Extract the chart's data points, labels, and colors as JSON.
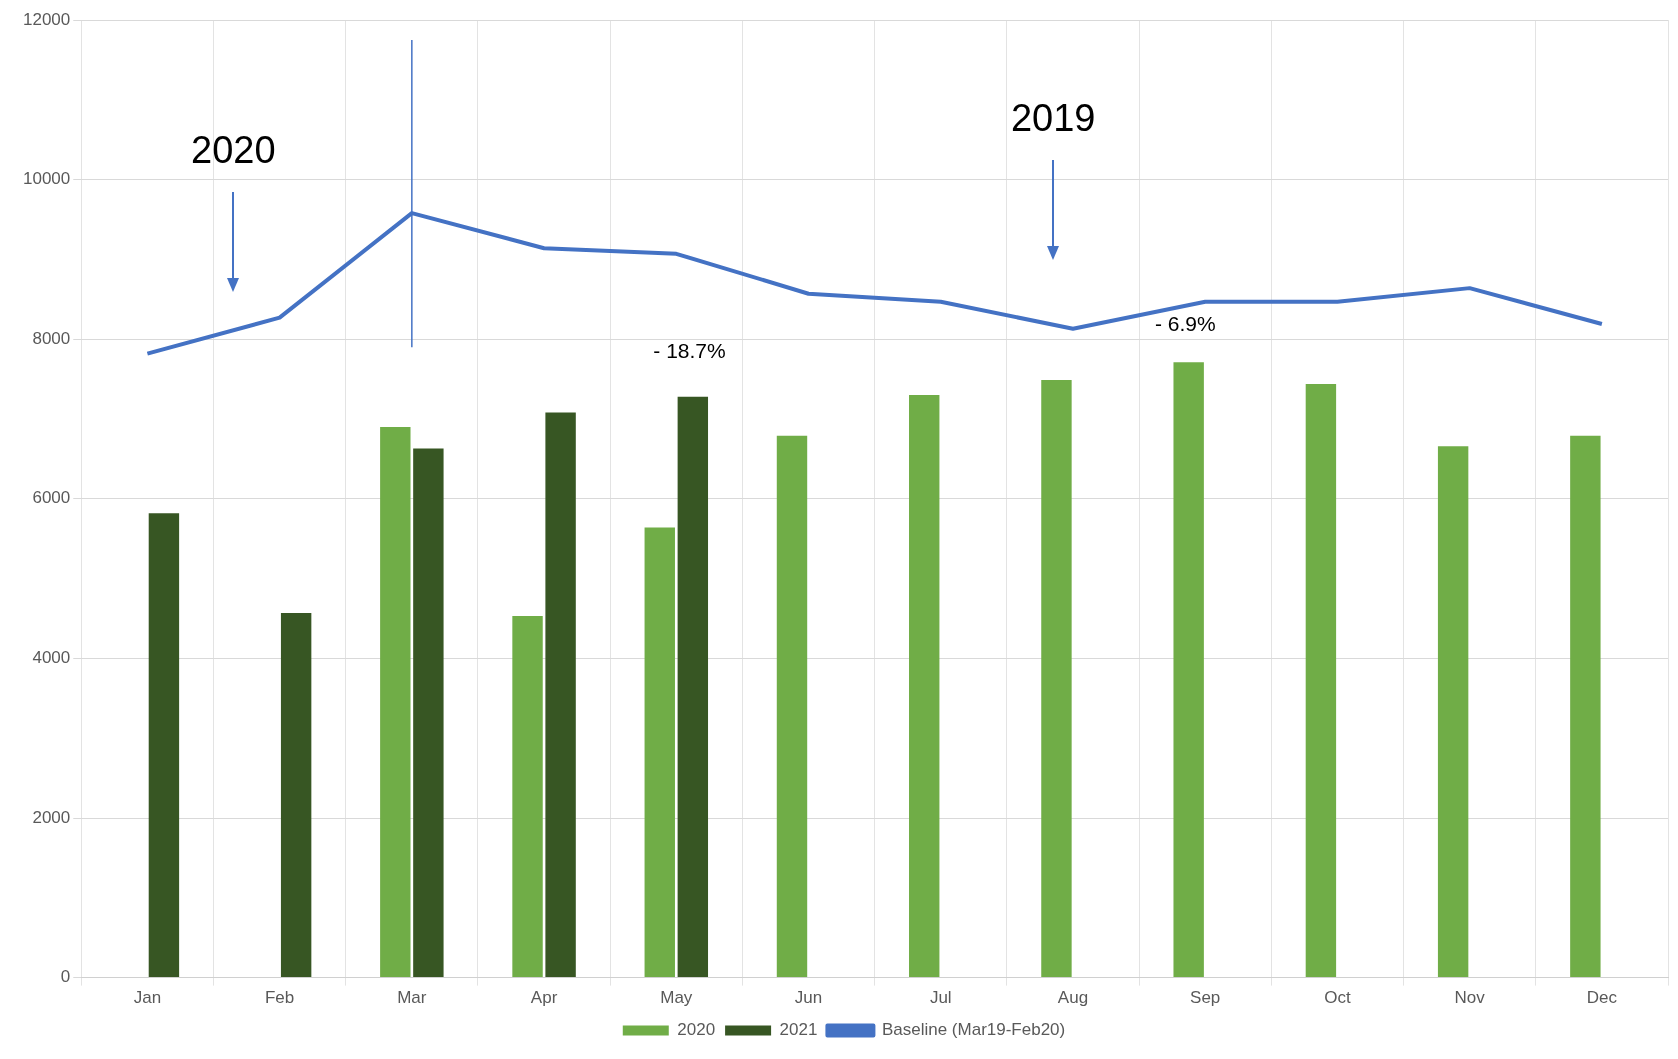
{
  "chart_data": {
    "type": "bar",
    "categories": [
      "Jan",
      "Feb",
      "Mar",
      "Apr",
      "May",
      "Jun",
      "Jul",
      "Aug",
      "Sep",
      "Oct",
      "Nov",
      "Dec"
    ],
    "series": [
      {
        "name": "2020",
        "color": "#70ad47",
        "values": [
          null,
          null,
          6900,
          4530,
          5640,
          6790,
          7300,
          7490,
          7710,
          7440,
          6660,
          6790
        ]
      },
      {
        "name": "2021",
        "color": "#375623",
        "values": [
          5820,
          4570,
          6630,
          7080,
          7280,
          null,
          null,
          null,
          null,
          null,
          null,
          null
        ]
      },
      {
        "name": "Baseline (Mar19-Feb20)",
        "type": "line",
        "color": "#4472c4",
        "values": [
          7820,
          8270,
          9580,
          9140,
          9070,
          8570,
          8470,
          8130,
          8470,
          8470,
          8640,
          8190
        ]
      }
    ],
    "ylim": [
      0,
      12000
    ],
    "yticks": [
      0,
      2000,
      4000,
      6000,
      8000,
      10000,
      12000
    ],
    "grid": true,
    "legend": "bottom",
    "marker": "none",
    "ref_lines": [
      {
        "axis": "x",
        "value": "Mar",
        "color": "#4472c4"
      }
    ],
    "annotations": [
      "2020",
      "2019",
      "- 18.7%",
      "- 6.9%"
    ]
  }
}
